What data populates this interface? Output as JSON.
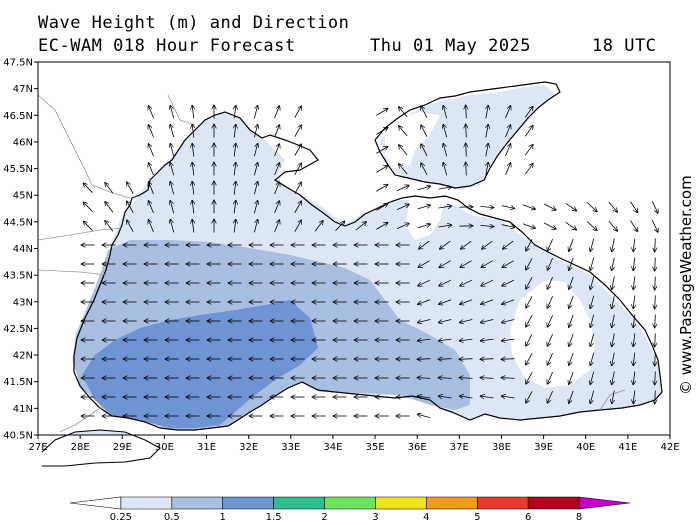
{
  "title_line1": "Wave Height (m) and Direction",
  "title_model": "EC-WAM 018 Hour Forecast",
  "title_date": "Thu 01 May 2025",
  "title_time": "18 UTC",
  "credit": "© www.PassageWeather.com",
  "lat_labels": [
    "47.5N",
    "47N",
    "46.5N",
    "46N",
    "45.5N",
    "45N",
    "44.5N",
    "44N",
    "43.5N",
    "43N",
    "42.5N",
    "42N",
    "41.5N",
    "41N",
    "40.5N"
  ],
  "lon_labels": [
    "27E",
    "28E",
    "29E",
    "30E",
    "31E",
    "32E",
    "33E",
    "34E",
    "35E",
    "36E",
    "37E",
    "38E",
    "39E",
    "40E",
    "41E",
    "42E"
  ],
  "legend": {
    "ticks": [
      "0.25",
      "0.5",
      "1",
      "1.5",
      "2",
      "3",
      "4",
      "5",
      "6",
      "8"
    ],
    "colors": [
      "#ffffff",
      "#dde6f5",
      "#a9bfe2",
      "#6f94d3",
      "#2fbf8f",
      "#6be35b",
      "#f1e31b",
      "#f39a1c",
      "#ea3a2c",
      "#b4001c",
      "#c800c8"
    ]
  },
  "colors": {
    "land": "#ffffff",
    "coast": "#000000",
    "border": "#999999",
    "wave_025_05": "#dde6f5",
    "wave_05_1": "#a9bfe2",
    "wave_1_15": "#6f94d3"
  },
  "arrow_direction_note_icon": "arrow-icon"
}
